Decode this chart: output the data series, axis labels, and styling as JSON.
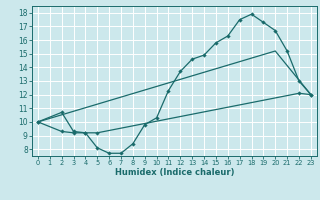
{
  "title": "",
  "xlabel": "Humidex (Indice chaleur)",
  "xlim": [
    -0.5,
    23.5
  ],
  "ylim": [
    7.5,
    18.5
  ],
  "xticks": [
    0,
    1,
    2,
    3,
    4,
    5,
    6,
    7,
    8,
    9,
    10,
    11,
    12,
    13,
    14,
    15,
    16,
    17,
    18,
    19,
    20,
    21,
    22,
    23
  ],
  "yticks": [
    8,
    9,
    10,
    11,
    12,
    13,
    14,
    15,
    16,
    17,
    18
  ],
  "bg_color": "#cce8ec",
  "grid_color": "#ffffff",
  "line_color": "#1a6b6b",
  "line1_x": [
    0,
    2,
    3,
    4,
    5,
    6,
    7,
    8,
    9,
    10,
    11,
    12,
    13,
    14,
    15,
    16,
    17,
    18,
    19,
    20,
    21,
    22,
    23
  ],
  "line1_y": [
    10,
    10.7,
    9.3,
    9.2,
    8.1,
    7.7,
    7.7,
    8.4,
    9.8,
    10.3,
    12.3,
    13.7,
    14.6,
    14.9,
    15.8,
    16.3,
    17.5,
    17.9,
    17.3,
    16.7,
    15.2,
    13.0,
    12.0
  ],
  "line2_x": [
    0,
    2,
    3,
    4,
    5,
    22,
    23
  ],
  "line2_y": [
    10,
    9.3,
    9.2,
    9.2,
    9.2,
    12.1,
    12.0
  ],
  "line3_x": [
    0,
    20,
    23
  ],
  "line3_y": [
    10,
    15.2,
    12.0
  ]
}
